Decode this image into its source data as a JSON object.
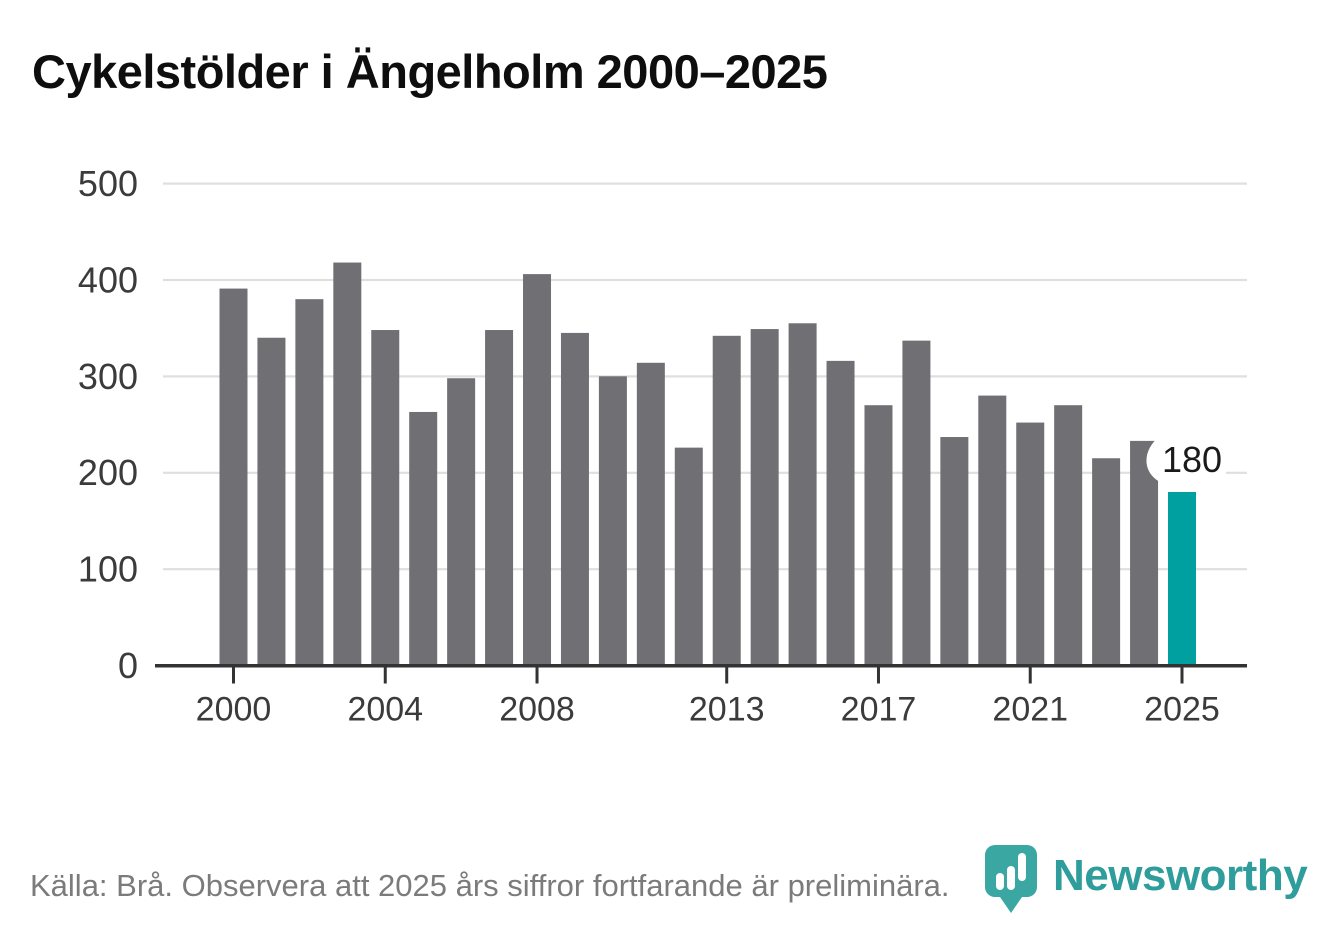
{
  "title": "Cykelstölder i Ängelholm 2000–2025",
  "footer": {
    "source_note": "Källa: Brå. Observera att 2025 års siffror fortfarande är preliminära."
  },
  "branding": {
    "wordmark": "Newsworthy"
  },
  "colors": {
    "bar": "#6f6f74",
    "highlight": "#00a0a0",
    "grid": "#dfdfdf",
    "axis": "#333333",
    "tick_text": "#3b3b3b",
    "title_text": "#0e0e0e",
    "footer_text": "#7b7b7b",
    "brand_teal": "#2e9d9b",
    "pin_teal": "#3aa7a2",
    "label_text": "#1a1a1a"
  },
  "chart_data": {
    "type": "bar",
    "title": "Cykelstölder i Ängelholm 2000–2025",
    "xlabel": "",
    "ylabel": "",
    "ylim": [
      0,
      500
    ],
    "grid": "horizontal",
    "legend": "none",
    "categories": [
      2000,
      2001,
      2002,
      2003,
      2004,
      2005,
      2006,
      2007,
      2008,
      2009,
      2010,
      2011,
      2012,
      2013,
      2014,
      2015,
      2016,
      2017,
      2018,
      2019,
      2020,
      2021,
      2022,
      2023,
      2024,
      2025
    ],
    "values": [
      391,
      340,
      380,
      418,
      348,
      263,
      298,
      348,
      406,
      345,
      300,
      314,
      226,
      342,
      349,
      355,
      316,
      270,
      337,
      237,
      280,
      252,
      270,
      215,
      233,
      180
    ],
    "highlight_category": 2025,
    "yticks": [
      0,
      100,
      200,
      300,
      400,
      500
    ],
    "xticks": [
      2000,
      2004,
      2008,
      2013,
      2017,
      2021,
      2025
    ],
    "data_label": {
      "category": 2025,
      "text": "180"
    }
  }
}
